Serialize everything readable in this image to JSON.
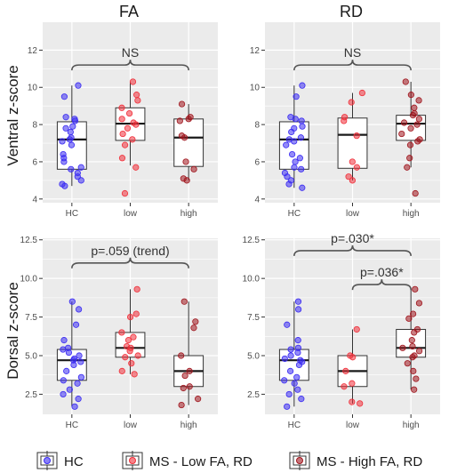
{
  "figure": {
    "column_titles": [
      "FA",
      "RD"
    ],
    "row_titles": [
      "Ventral z-score",
      "Dorsal z-score"
    ]
  },
  "colors": {
    "HC": "#3a2bf2",
    "low": "#f0303a",
    "high": "#a0161e",
    "panel_bg": "#ebebeb",
    "grid": "#ffffff"
  },
  "legend": {
    "entries": [
      {
        "key": "HC",
        "label": "HC"
      },
      {
        "key": "low",
        "label": "MS - Low FA, RD"
      },
      {
        "key": "high",
        "label": "MS - High FA, RD"
      }
    ]
  },
  "chart_data": [
    {
      "type": "box",
      "panel": "ventral-fa",
      "categories": [
        "HC",
        "low",
        "high"
      ],
      "ylim": [
        3.8,
        13.5
      ],
      "yticks": [
        4,
        6,
        8,
        10,
        12
      ],
      "ytick_labels": [
        "4",
        "6",
        "8",
        "10",
        "12"
      ],
      "grid": true,
      "boxes": [
        {
          "group": "HC",
          "q1": 5.6,
          "median": 7.2,
          "q3": 8.15,
          "whisker_low": 4.7,
          "whisker_high": 10.1
        },
        {
          "group": "low",
          "q1": 7.15,
          "median": 8.05,
          "q3": 8.9,
          "whisker_low": 5.8,
          "whisker_high": 10.3
        },
        {
          "group": "high",
          "q1": 5.75,
          "median": 7.3,
          "q3": 8.3,
          "whisker_low": 5.0,
          "whisker_high": 9.1
        }
      ],
      "points": [
        {
          "group": "HC",
          "values": [
            10.1,
            9.5,
            8.4,
            8.3,
            8.2,
            7.9,
            7.8,
            7.6,
            7.3,
            7.2,
            7.1,
            6.9,
            6.4,
            6.2,
            6.0,
            5.7,
            5.6,
            5.4,
            5.2,
            5.0,
            4.8,
            4.7
          ]
        },
        {
          "group": "low",
          "values": [
            10.3,
            9.6,
            9.3,
            8.9,
            8.6,
            8.3,
            8.1,
            8.0,
            7.8,
            7.5,
            7.2,
            6.9,
            6.2,
            5.7,
            4.3
          ]
        },
        {
          "group": "high",
          "values": [
            9.1,
            8.4,
            8.3,
            8.2,
            7.4,
            7.3,
            6.0,
            5.6,
            5.1,
            5.0
          ]
        }
      ],
      "annotations": [
        {
          "text": "NS",
          "from": "HC",
          "to": "high",
          "y": 11.2
        }
      ]
    },
    {
      "type": "box",
      "panel": "ventral-rd",
      "categories": [
        "HC",
        "low",
        "high"
      ],
      "ylim": [
        3.8,
        13.5
      ],
      "yticks": [
        4,
        6,
        8,
        10,
        12
      ],
      "ytick_labels": [
        "4",
        "6",
        "8",
        "10",
        "12"
      ],
      "grid": true,
      "boxes": [
        {
          "group": "HC",
          "q1": 5.6,
          "median": 7.2,
          "q3": 8.15,
          "whisker_low": 4.6,
          "whisker_high": 10.1
        },
        {
          "group": "low",
          "q1": 5.65,
          "median": 7.45,
          "q3": 8.35,
          "whisker_low": 5.0,
          "whisker_high": 9.7
        },
        {
          "group": "high",
          "q1": 7.15,
          "median": 8.05,
          "q3": 8.5,
          "whisker_low": 5.7,
          "whisker_high": 10.3
        }
      ],
      "points": [
        {
          "group": "HC",
          "values": [
            10.1,
            9.5,
            8.4,
            8.3,
            8.2,
            7.9,
            7.8,
            7.6,
            7.3,
            7.2,
            7.1,
            6.9,
            6.4,
            6.2,
            6.0,
            5.7,
            5.6,
            5.4,
            5.2,
            5.0,
            4.8,
            4.6
          ]
        },
        {
          "group": "low",
          "values": [
            9.7,
            9.2,
            8.4,
            8.2,
            7.4,
            6.0,
            5.7,
            5.2,
            5.0
          ]
        },
        {
          "group": "high",
          "values": [
            10.3,
            9.6,
            9.3,
            8.9,
            8.6,
            8.5,
            8.3,
            8.1,
            8.0,
            7.8,
            7.5,
            7.2,
            7.1,
            6.9,
            6.2,
            5.7,
            4.3
          ]
        }
      ],
      "annotations": [
        {
          "text": "NS",
          "from": "HC",
          "to": "high",
          "y": 11.2
        }
      ]
    },
    {
      "type": "box",
      "panel": "dorsal-fa",
      "categories": [
        "HC",
        "low",
        "high"
      ],
      "ylim": [
        1.2,
        12.6
      ],
      "yticks": [
        2.5,
        5.0,
        7.5,
        10.0,
        12.5
      ],
      "ytick_labels": [
        "2.5",
        "5.0",
        "7.5",
        "10.0",
        "12.5"
      ],
      "grid": true,
      "boxes": [
        {
          "group": "HC",
          "q1": 3.4,
          "median": 4.7,
          "q3": 5.4,
          "whisker_low": 1.7,
          "whisker_high": 8.5
        },
        {
          "group": "low",
          "q1": 4.9,
          "median": 5.5,
          "q3": 6.5,
          "whisker_low": 3.8,
          "whisker_high": 9.3
        },
        {
          "group": "high",
          "q1": 3.0,
          "median": 4.0,
          "q3": 5.0,
          "whisker_low": 1.8,
          "whisker_high": 8.5
        }
      ],
      "points": [
        {
          "group": "HC",
          "values": [
            8.5,
            8.0,
            7.0,
            6.0,
            5.5,
            5.4,
            5.2,
            5.0,
            4.8,
            4.7,
            4.6,
            4.4,
            4.0,
            3.6,
            3.4,
            3.2,
            2.8,
            2.5,
            2.2,
            1.7
          ]
        },
        {
          "group": "low",
          "values": [
            9.3,
            7.7,
            7.5,
            6.5,
            6.2,
            6.0,
            5.6,
            5.5,
            5.3,
            5.0,
            4.9,
            4.5,
            4.0,
            3.8
          ]
        },
        {
          "group": "high",
          "values": [
            8.5,
            7.2,
            6.8,
            5.0,
            4.0,
            3.7,
            3.0,
            2.9,
            2.2,
            1.8
          ]
        }
      ],
      "annotations": [
        {
          "text": "p=.059 (trend)",
          "from": "HC",
          "to": "high",
          "y": 11.0
        }
      ]
    },
    {
      "type": "box",
      "panel": "dorsal-rd",
      "categories": [
        "HC",
        "low",
        "high"
      ],
      "ylim": [
        1.2,
        12.6
      ],
      "yticks": [
        2.5,
        5.0,
        7.5,
        10.0,
        12.5
      ],
      "ytick_labels": [
        "2.5",
        "5.0",
        "7.5",
        "10.0",
        "12.5"
      ],
      "grid": true,
      "boxes": [
        {
          "group": "HC",
          "q1": 3.4,
          "median": 4.7,
          "q3": 5.4,
          "whisker_low": 1.7,
          "whisker_high": 8.5
        },
        {
          "group": "low",
          "q1": 3.0,
          "median": 4.0,
          "q3": 5.0,
          "whisker_low": 1.9,
          "whisker_high": 6.7
        },
        {
          "group": "high",
          "q1": 4.9,
          "median": 5.5,
          "q3": 6.7,
          "whisker_low": 2.8,
          "whisker_high": 9.3
        }
      ],
      "points": [
        {
          "group": "HC",
          "values": [
            8.5,
            8.0,
            7.0,
            6.0,
            5.5,
            5.4,
            5.2,
            5.0,
            4.8,
            4.7,
            4.6,
            4.4,
            4.0,
            3.6,
            3.4,
            3.2,
            2.8,
            2.5,
            2.2,
            1.7
          ]
        },
        {
          "group": "low",
          "values": [
            6.7,
            5.0,
            4.9,
            4.0,
            3.2,
            3.0,
            2.0,
            1.9
          ]
        },
        {
          "group": "high",
          "values": [
            9.3,
            8.4,
            7.7,
            7.4,
            6.7,
            6.5,
            6.0,
            5.6,
            5.5,
            5.3,
            5.0,
            4.9,
            4.5,
            4.0,
            3.5,
            2.8
          ]
        }
      ],
      "annotations": [
        {
          "text": "p=.030*",
          "from": "HC",
          "to": "high",
          "y": 11.8
        },
        {
          "text": "p=.036*",
          "from": "low",
          "to": "high",
          "y": 9.6
        }
      ]
    }
  ]
}
